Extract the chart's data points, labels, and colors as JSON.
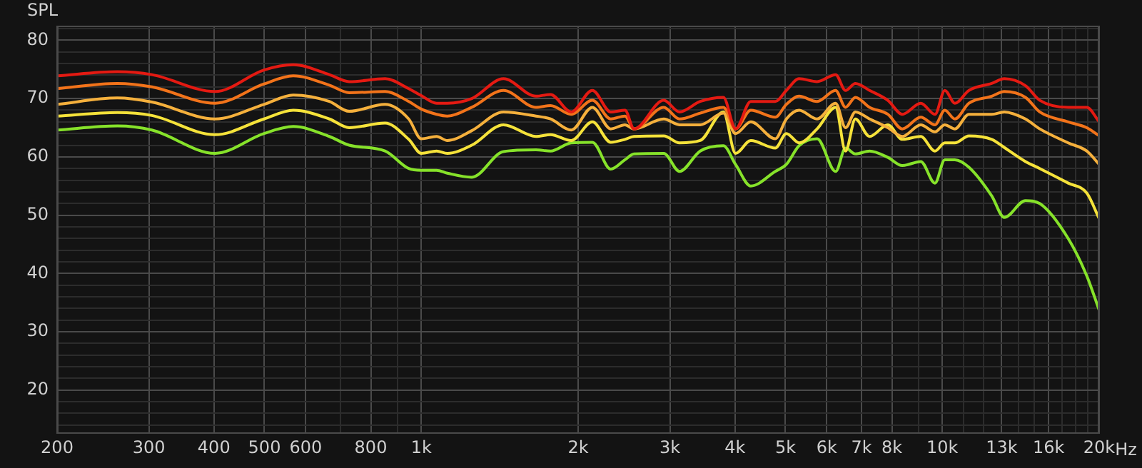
{
  "chart_data": {
    "type": "line",
    "ylabel": "SPL",
    "xlabel": "Hz",
    "legend": false,
    "grid": true,
    "marker": "none",
    "line_style": "solid",
    "log": "x",
    "x": [
      200,
      261,
      304,
      402,
      499,
      568,
      666,
      727,
      852,
      946,
      1000,
      1070,
      1122,
      1250,
      1438,
      1660,
      1770,
      1940,
      2130,
      2310,
      2460,
      2560,
      2920,
      3130,
      3430,
      3800,
      4010,
      4290,
      4780,
      5020,
      5310,
      5750,
      6240,
      6520,
      6810,
      7250,
      7860,
      8380,
      9090,
      9680,
      10110,
      10570,
      11250,
      12440,
      13150,
      14440,
      15380,
      17440,
      18930,
      20000
    ],
    "xlim": [
      200,
      20000
    ],
    "xticks": [
      200,
      300,
      400,
      500,
      600,
      {
        "value": 700,
        "label": null
      },
      800,
      {
        "value": 900,
        "label": null
      },
      {
        "value": 1000,
        "label": "1k"
      },
      {
        "value": 2000,
        "label": "2k"
      },
      {
        "value": 3000,
        "label": "3k"
      },
      {
        "value": 4000,
        "label": "4k"
      },
      {
        "value": 5000,
        "label": "5k"
      },
      {
        "value": 6000,
        "label": "6k"
      },
      {
        "value": 7000,
        "label": "7k"
      },
      {
        "value": 8000,
        "label": "8k"
      },
      {
        "value": 9000,
        "label": null
      },
      {
        "value": 10000,
        "label": "10k"
      },
      {
        "value": 11000,
        "label": null
      },
      {
        "value": 12000,
        "label": null
      },
      {
        "value": 13000,
        "label": "13k"
      },
      {
        "value": 14000,
        "label": null
      },
      {
        "value": 15000,
        "label": null
      },
      {
        "value": 16000,
        "label": "16k"
      },
      {
        "value": 17000,
        "label": null
      },
      {
        "value": 18000,
        "label": null
      },
      {
        "value": 19000,
        "label": null
      },
      {
        "value": 20000,
        "label": "20k"
      }
    ],
    "ylim": [
      12.5,
      82.5
    ],
    "yticks": [
      {
        "value": 14,
        "label": null
      },
      {
        "value": 16,
        "label": null
      },
      {
        "value": 18,
        "label": null
      },
      20,
      {
        "value": 22,
        "label": null
      },
      {
        "value": 24,
        "label": null
      },
      {
        "value": 26,
        "label": null
      },
      {
        "value": 28,
        "label": null
      },
      30,
      {
        "value": 32,
        "label": null
      },
      {
        "value": 34,
        "label": null
      },
      {
        "value": 36,
        "label": null
      },
      {
        "value": 38,
        "label": null
      },
      40,
      {
        "value": 42,
        "label": null
      },
      {
        "value": 44,
        "label": null
      },
      {
        "value": 46,
        "label": null
      },
      {
        "value": 48,
        "label": null
      },
      50,
      {
        "value": 52,
        "label": null
      },
      {
        "value": 54,
        "label": null
      },
      {
        "value": 56,
        "label": null
      },
      {
        "value": 58,
        "label": null
      },
      60,
      {
        "value": 62,
        "label": null
      },
      {
        "value": 64,
        "label": null
      },
      {
        "value": 66,
        "label": null
      },
      {
        "value": 68,
        "label": null
      },
      70,
      {
        "value": 72,
        "label": null
      },
      {
        "value": 74,
        "label": null
      },
      {
        "value": 76,
        "label": null
      },
      {
        "value": 78,
        "label": null
      },
      80,
      {
        "value": 82,
        "label": null
      }
    ],
    "series": [
      {
        "color": "#e41a12",
        "values": [
          73.9,
          74.6,
          74.1,
          71.2,
          74.9,
          75.8,
          74.1,
          72.9,
          73.4,
          71.7,
          70.5,
          69.2,
          69.2,
          70,
          73.4,
          70.4,
          70.7,
          67.7,
          71.4,
          67.7,
          68,
          64.8,
          69.7,
          67.7,
          69.5,
          70.2,
          64.8,
          69.5,
          69.5,
          71.4,
          73.4,
          72.9,
          74.1,
          71.4,
          72.6,
          71.4,
          69.7,
          67.3,
          69.2,
          67.3,
          71.4,
          69.2,
          71.4,
          72.6,
          73.4,
          72.2,
          69.7,
          68.5,
          68.5,
          66
        ]
      },
      {
        "color": "#f2731a",
        "values": [
          71.7,
          72.6,
          72,
          69.2,
          72.5,
          73.9,
          72.3,
          71,
          71.2,
          69.5,
          68.2,
          67.3,
          67,
          68.5,
          71.4,
          68.5,
          68.8,
          67.3,
          69.7,
          66.5,
          67,
          64.8,
          68.5,
          66.5,
          67.5,
          68.5,
          64.8,
          68,
          66.8,
          69,
          70.4,
          69.5,
          71.4,
          68.5,
          70.2,
          68.5,
          67.3,
          64.8,
          66.8,
          65.5,
          68,
          66.5,
          69.2,
          70.4,
          71.2,
          70.2,
          67.7,
          66,
          65,
          63.6
        ]
      },
      {
        "color": "#f5b03c",
        "values": [
          69,
          70.1,
          69.4,
          66.5,
          69,
          70.6,
          69.5,
          67.8,
          69,
          66.5,
          63.1,
          63.5,
          62.8,
          64.5,
          67.7,
          67,
          66.5,
          64.6,
          68.5,
          64.8,
          65.5,
          64.8,
          66.5,
          65.5,
          65.5,
          67.5,
          64,
          66,
          63.1,
          66.5,
          68,
          66.5,
          69.2,
          65,
          67.7,
          66.5,
          65,
          63.5,
          65.5,
          64.3,
          65.5,
          64.8,
          67.3,
          67.3,
          67.7,
          66.5,
          64.8,
          62.4,
          61,
          58.7
        ]
      },
      {
        "color": "#f5e23a",
        "values": [
          67,
          67.6,
          67.1,
          63.8,
          66.5,
          68,
          66.5,
          65,
          65.8,
          63,
          60.6,
          61,
          60.6,
          62,
          65.5,
          63.5,
          63.8,
          62.8,
          66,
          62.5,
          63,
          63.5,
          63.6,
          62.4,
          62.8,
          67.7,
          60.6,
          62.8,
          61.5,
          64,
          62.4,
          64.8,
          68.5,
          61,
          66.5,
          63.5,
          65.5,
          63,
          63.5,
          61,
          62.4,
          62.4,
          63.6,
          63,
          61.6,
          59.2,
          58,
          55.5,
          53.8,
          49.4
        ]
      },
      {
        "color": "#86e22a",
        "values": [
          64.6,
          65.3,
          64.6,
          60.6,
          64,
          65.2,
          63.5,
          62,
          61,
          58,
          57.7,
          57.7,
          57.2,
          56.5,
          60.9,
          61.2,
          61,
          62.4,
          62.5,
          57.9,
          59.5,
          60.5,
          60.6,
          57.5,
          61,
          61.9,
          58.7,
          55,
          57.5,
          58.7,
          61.9,
          63.1,
          57.5,
          61.5,
          60.5,
          61,
          59.9,
          58.5,
          59.2,
          55.5,
          59.5,
          59.5,
          58.2,
          53.3,
          49.6,
          52.5,
          52,
          46,
          39.6,
          33.7
        ]
      }
    ]
  }
}
